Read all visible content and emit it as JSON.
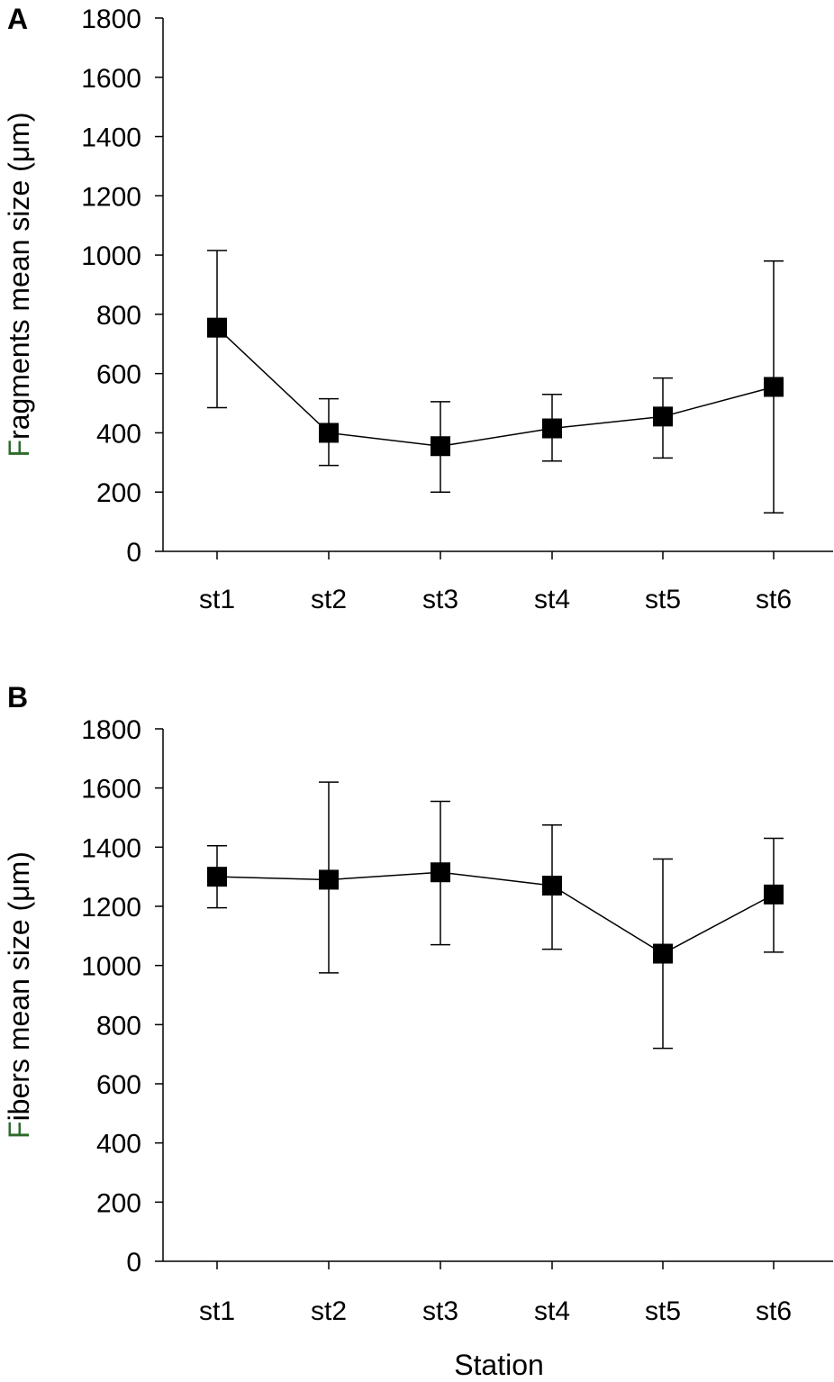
{
  "chart_data": [
    {
      "panel": "A",
      "type": "line",
      "xlabel": "",
      "ylabel": "Fragments mean size (μm)",
      "ylabel_first": "F",
      "ylabel_rest": "ragments mean size (μm)",
      "categories": [
        "st1",
        "st2",
        "st3",
        "st4",
        "st5",
        "st6"
      ],
      "values": [
        755,
        400,
        355,
        415,
        455,
        555
      ],
      "error_upper": [
        1015,
        515,
        505,
        530,
        585,
        980
      ],
      "error_lower": [
        485,
        290,
        200,
        305,
        315,
        130
      ],
      "ylim": [
        0,
        1800
      ],
      "yticks": [
        0,
        200,
        400,
        600,
        800,
        1000,
        1200,
        1400,
        1600,
        1800
      ],
      "grid": false
    },
    {
      "panel": "B",
      "type": "line",
      "xlabel": "Station",
      "ylabel": "Fibers mean size (μm)",
      "ylabel_first": "F",
      "ylabel_rest": "ibers mean size (μm)",
      "categories": [
        "st1",
        "st2",
        "st3",
        "st4",
        "st5",
        "st6"
      ],
      "values": [
        1300,
        1290,
        1315,
        1270,
        1040,
        1240
      ],
      "error_upper": [
        1405,
        1620,
        1555,
        1475,
        1360,
        1430
      ],
      "error_lower": [
        1195,
        975,
        1070,
        1055,
        720,
        1045
      ],
      "ylim": [
        0,
        1800
      ],
      "yticks": [
        0,
        200,
        400,
        600,
        800,
        1000,
        1200,
        1400,
        1600,
        1800
      ],
      "grid": false
    }
  ],
  "colors": {
    "ink": "#000000",
    "ylabel_accent": "#2e6b2e"
  }
}
